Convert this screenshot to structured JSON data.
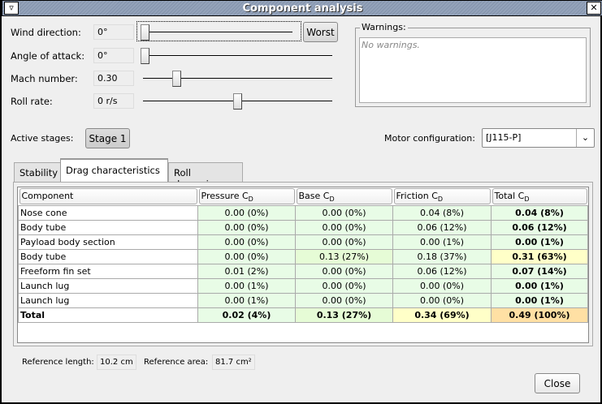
{
  "window": {
    "title": "Component analysis",
    "menu_icon": "window-menu-icon",
    "close_icon": "close-icon"
  },
  "params": [
    {
      "label": "Wind direction:",
      "value": "0°",
      "slider": 0
    },
    {
      "label": "Angle of attack:",
      "value": "0°",
      "slider": 0
    },
    {
      "label": "Mach number:",
      "value": "0.30",
      "slider": 0.1
    },
    {
      "label": "Roll rate:",
      "value": "0 r/s",
      "slider": 0.5
    }
  ],
  "worst_button": "Worst",
  "warnings": {
    "label": "Warnings:",
    "text": "No warnings."
  },
  "stages": {
    "label": "Active stages:",
    "button": "Stage 1"
  },
  "motor": {
    "label": "Motor configuration:",
    "value": "[J115-P]"
  },
  "tabs": [
    "Stability",
    "Drag characteristics",
    "Roll dynamics"
  ],
  "table": {
    "headers": [
      {
        "t": "Component",
        "s": ""
      },
      {
        "t": "Pressure C",
        "s": "D"
      },
      {
        "t": "Base C",
        "s": "D"
      },
      {
        "t": "Friction C",
        "s": "D"
      },
      {
        "t": "Total C",
        "s": "D"
      }
    ],
    "rows": [
      [
        "Nose cone",
        "0.00 (0%)",
        "0.00 (0%)",
        "0.04 (8%)",
        "0.04 (8%)"
      ],
      [
        "Body tube",
        "0.00 (0%)",
        "0.00 (0%)",
        "0.06 (12%)",
        "0.06 (12%)"
      ],
      [
        "Payload body section",
        "0.00 (0%)",
        "0.00 (0%)",
        "0.00 (1%)",
        "0.00 (1%)"
      ],
      [
        "Body tube",
        "0.00 (0%)",
        "0.13 (27%)",
        "0.18 (37%)",
        "0.31 (63%)"
      ],
      [
        "Freeform fin set",
        "0.01 (2%)",
        "0.00 (0%)",
        "0.06 (12%)",
        "0.07 (14%)"
      ],
      [
        "Launch lug",
        "0.00 (1%)",
        "0.00 (0%)",
        "0.00 (0%)",
        "0.00 (1%)"
      ],
      [
        "Launch lug",
        "0.00 (1%)",
        "0.00 (0%)",
        "0.00 (0%)",
        "0.00 (1%)"
      ],
      [
        "Total",
        "0.02 (4%)",
        "0.13 (27%)",
        "0.34 (69%)",
        "0.49 (100%)"
      ]
    ],
    "colors": {
      "low": "#e8fce6",
      "mid": "#e6fcd6",
      "high": "#ffffc8",
      "max": "#ffe0a4"
    }
  },
  "reference": {
    "length_label": "Reference length:",
    "length": "10.2 cm",
    "area_label": "Reference area:",
    "area": "81.7 cm²"
  },
  "close_button": "Close"
}
